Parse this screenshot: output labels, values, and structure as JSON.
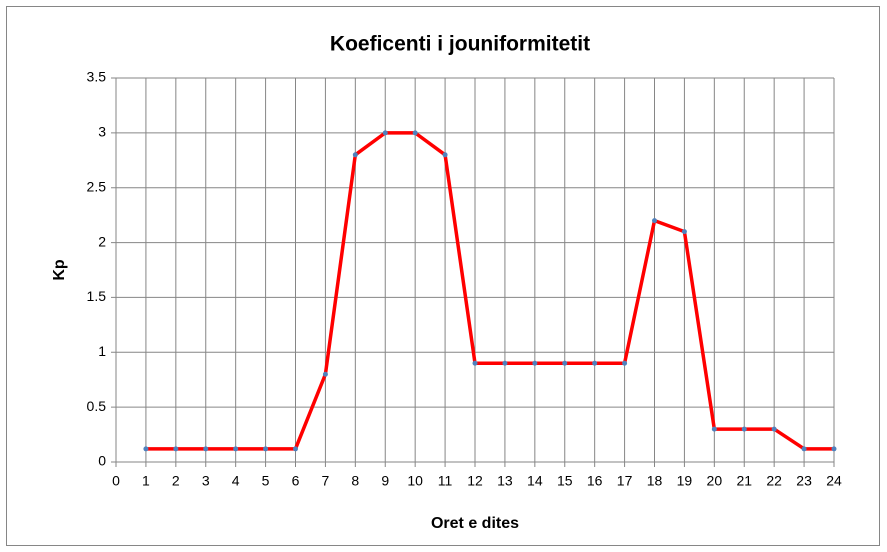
{
  "chart_data": {
    "type": "line",
    "title": "Koeficenti i jouniformitetit",
    "x_label": "Oret e dites",
    "y_label": "Kp",
    "x": [
      1,
      2,
      3,
      4,
      5,
      6,
      7,
      8,
      9,
      10,
      11,
      12,
      13,
      14,
      15,
      16,
      17,
      18,
      19,
      20,
      21,
      22,
      23,
      24
    ],
    "values": [
      0.12,
      0.12,
      0.12,
      0.12,
      0.12,
      0.12,
      0.8,
      2.8,
      3,
      3,
      2.8,
      0.9,
      0.9,
      0.9,
      0.9,
      0.9,
      0.9,
      2.2,
      2.1,
      0.3,
      0.3,
      0.3,
      0.12,
      0.12
    ],
    "color": "#ff0000",
    "marker_color": "#4f81bd",
    "xlim": [
      0,
      24
    ],
    "xticks": [
      0,
      1,
      2,
      3,
      4,
      5,
      6,
      7,
      8,
      9,
      10,
      11,
      12,
      13,
      14,
      15,
      16,
      17,
      18,
      19,
      20,
      21,
      22,
      23,
      24
    ],
    "ylim": [
      0,
      3.5
    ],
    "yticks": [
      0,
      0.5,
      1,
      1.5,
      2,
      2.5,
      3,
      3.5
    ],
    "grid": true
  }
}
